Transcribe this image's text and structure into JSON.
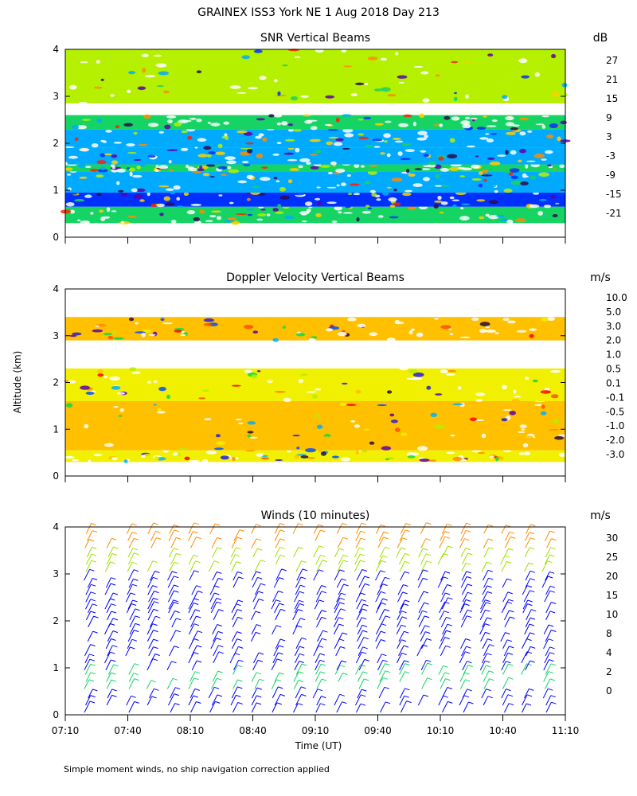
{
  "figure": {
    "title": "GRAINEX ISS3 York NE   1 Aug 2018 Day 213",
    "y_axis_label": "Altitude (km)",
    "x_axis_label": "Time (UT)",
    "footnote": "Simple moment winds, no ship navigation correction applied"
  },
  "chart_data": [
    {
      "type": "heatmap",
      "title": "SNR Vertical Beams",
      "colorbar_unit": "dB",
      "x": [
        "07:10",
        "07:40",
        "08:10",
        "08:40",
        "09:10",
        "09:40",
        "10:10",
        "10:40",
        "11:10"
      ],
      "xlim": [
        "07:10",
        "11:10"
      ],
      "y_ticks": [
        "0",
        "1",
        "2",
        "3",
        "4"
      ],
      "ylim": [
        0,
        4
      ],
      "colorbar_ticks": [
        "27",
        "21",
        "15",
        "9",
        "3",
        "-3",
        "-9",
        "-15",
        "-21"
      ],
      "colorbar_colors": [
        "#ffd000",
        "#ff8c00",
        "#ff2000",
        "#2e0a4a",
        "#5e00a8",
        "#0030ff",
        "#00aaff",
        "#16d464",
        "#b4f000"
      ],
      "bands": [
        {
          "y0": 0.3,
          "y1": 0.65,
          "color": "#16d464"
        },
        {
          "y0": 0.65,
          "y1": 0.95,
          "color": "#0030ff"
        },
        {
          "y0": 0.95,
          "y1": 1.4,
          "color": "#00aaff"
        },
        {
          "y0": 1.4,
          "y1": 1.55,
          "color": "#16d464"
        },
        {
          "y0": 1.55,
          "y1": 1.9,
          "color": "#00aaff"
        },
        {
          "y0": 1.9,
          "y1": 2.3,
          "color": "#00aaff"
        },
        {
          "y0": 2.3,
          "y1": 2.6,
          "color": "#16d464"
        },
        {
          "y0": 2.85,
          "y1": 4.0,
          "color": "#b4f000"
        }
      ]
    },
    {
      "type": "heatmap",
      "title": "Doppler Velocity Vertical Beams",
      "colorbar_unit": "m/s",
      "x": [
        "07:10",
        "07:40",
        "08:10",
        "08:40",
        "09:10",
        "09:40",
        "10:10",
        "10:40",
        "11:10"
      ],
      "xlim": [
        "07:10",
        "11:10"
      ],
      "y_ticks": [
        "0",
        "1",
        "2",
        "3",
        "4"
      ],
      "ylim": [
        0,
        4
      ],
      "colorbar_ticks": [
        "10.0",
        "5.0",
        "3.0",
        "2.0",
        "1.0",
        "0.5",
        "0.1",
        "-0.1",
        "-0.5",
        "-1.0",
        "-2.0",
        "-3.0"
      ],
      "colorbar_colors": [
        "#2a0a3c",
        "#5e00a8",
        "#2a1cd8",
        "#0050ff",
        "#00b0ff",
        "#10d840",
        "#b4f000",
        "#f0f000",
        "#ffc000",
        "#ff8c00",
        "#ff5000",
        "#ff0000"
      ],
      "bands": [
        {
          "y0": 0.3,
          "y1": 0.55,
          "color": "#f0f000"
        },
        {
          "y0": 0.55,
          "y1": 1.6,
          "color": "#ffc000"
        },
        {
          "y0": 1.6,
          "y1": 2.3,
          "color": "#f0f000"
        },
        {
          "y0": 2.9,
          "y1": 3.4,
          "color": "#ffc000"
        }
      ]
    },
    {
      "type": "scatter",
      "title": "Winds (10 minutes)",
      "colorbar_unit": "m/s",
      "x": [
        "07:10",
        "07:40",
        "08:10",
        "08:40",
        "09:10",
        "09:40",
        "10:10",
        "10:40",
        "11:10"
      ],
      "xlim": [
        "07:10",
        "11:10"
      ],
      "y_ticks": [
        "0",
        "1",
        "2",
        "3",
        "4"
      ],
      "ylim": [
        0,
        4
      ],
      "colorbar_ticks": [
        "30",
        "25",
        "20",
        "15",
        "10",
        "8",
        "4",
        "2",
        "0"
      ],
      "colorbar_colors": [
        "#ff0000",
        "#ff8c00",
        "#ffd000",
        "#a0e000",
        "#16d464",
        "#00aaff",
        "#0000ff",
        "#4a0078",
        "#000000"
      ],
      "profile_times_min": [
        10,
        20,
        30,
        40,
        50,
        60,
        70,
        80,
        90,
        100,
        110,
        120,
        130,
        140,
        150,
        160,
        170,
        180,
        190,
        200,
        210,
        220,
        230
      ],
      "wind_layers": [
        {
          "y0": 0.0,
          "y1": 0.5,
          "speed": 4
        },
        {
          "y0": 0.5,
          "y1": 0.9,
          "speed": 10
        },
        {
          "y0": 0.9,
          "y1": 2.2,
          "speed": 6
        },
        {
          "y0": 2.2,
          "y1": 3.0,
          "speed": 6
        },
        {
          "y0": 3.0,
          "y1": 3.5,
          "speed": 15
        },
        {
          "y0": 3.5,
          "y1": 4.0,
          "speed": 25
        }
      ]
    }
  ]
}
